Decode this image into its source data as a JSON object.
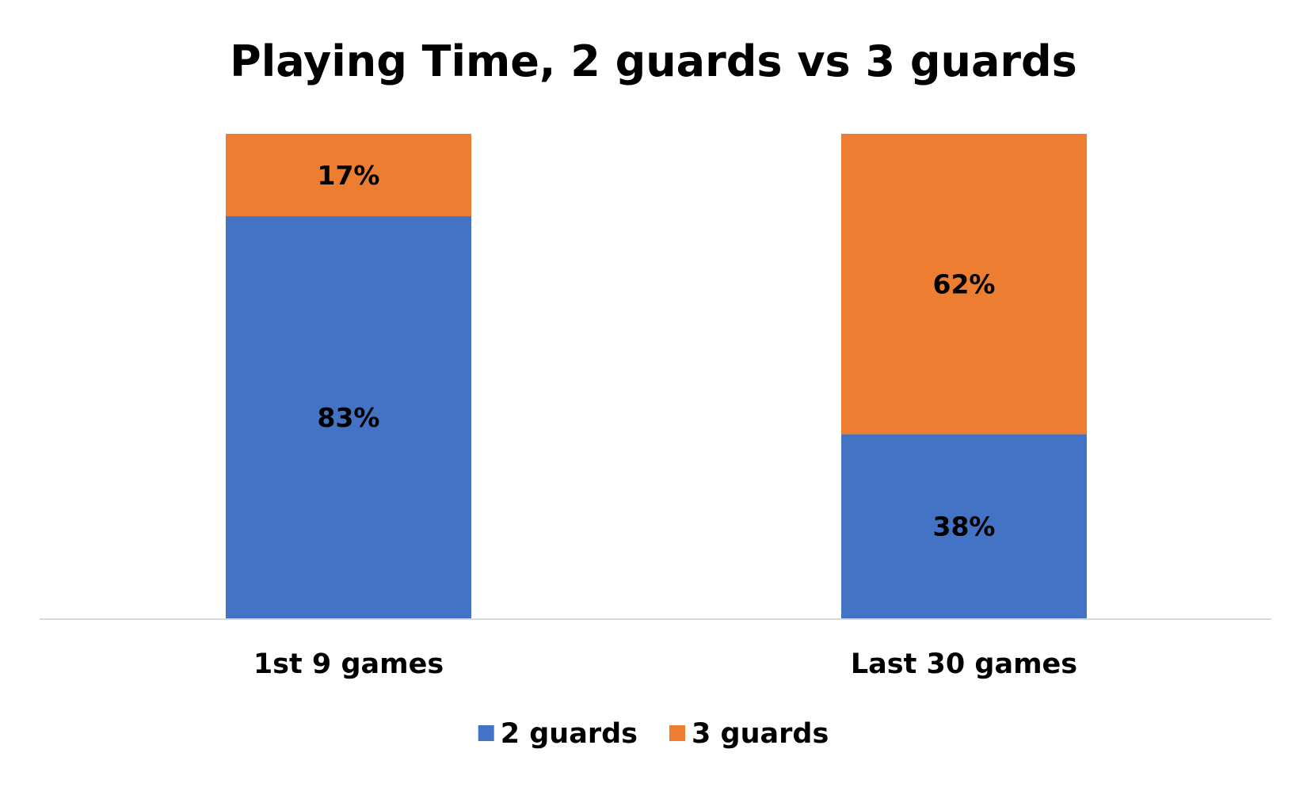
{
  "chart_data": {
    "type": "bar",
    "stacked": true,
    "title": "Playing Time, 2 guards vs 3 guards",
    "xlabel": "",
    "ylabel": "",
    "ylim": [
      0,
      100
    ],
    "grid": false,
    "legend_position": "bottom",
    "categories": [
      "1st 9 games",
      "Last 30 games"
    ],
    "series": [
      {
        "name": "2 guards",
        "values": [
          83,
          38
        ],
        "labels": [
          "83%",
          "38%"
        ],
        "color": "#4472C4"
      },
      {
        "name": "3 guards",
        "values": [
          17,
          62
        ],
        "labels": [
          "17%",
          "62%"
        ],
        "color": "#ED7D31"
      }
    ]
  }
}
